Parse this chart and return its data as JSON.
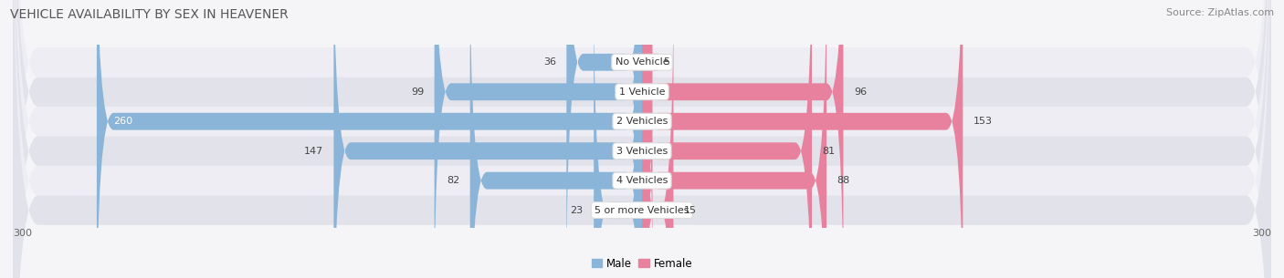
{
  "title": "VEHICLE AVAILABILITY BY SEX IN HEAVENER",
  "source": "Source: ZipAtlas.com",
  "categories": [
    "No Vehicle",
    "1 Vehicle",
    "2 Vehicles",
    "3 Vehicles",
    "4 Vehicles",
    "5 or more Vehicles"
  ],
  "male_values": [
    36,
    99,
    260,
    147,
    82,
    23
  ],
  "female_values": [
    5,
    96,
    153,
    81,
    88,
    15
  ],
  "male_color": "#8ab4d8",
  "female_color": "#e8819e",
  "row_bg_color_light": "#ededf3",
  "row_bg_color_dark": "#e2e2ea",
  "max_val": 300,
  "title_fontsize": 10,
  "source_fontsize": 8,
  "value_fontsize": 8,
  "category_fontsize": 8,
  "axis_tick_fontsize": 8,
  "background_color": "#f5f5f8",
  "male_label": "Male",
  "female_label": "Female"
}
